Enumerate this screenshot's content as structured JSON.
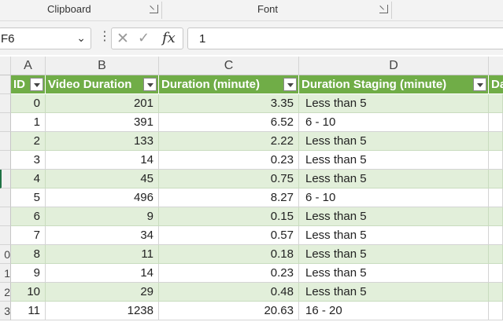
{
  "ribbon": {
    "groups": [
      "Clipboard",
      "Font"
    ]
  },
  "formula_bar": {
    "name_box": "F6",
    "cancel_icon": "close-icon",
    "enter_icon": "check-icon",
    "fx_label": "fx",
    "formula_value": "1"
  },
  "columns": [
    "A",
    "B",
    "C",
    "D"
  ],
  "table": {
    "headers": [
      "ID",
      "Video Duration",
      "Duration (minute)",
      "Duration Staging (minute)",
      "Da"
    ],
    "rows": [
      {
        "row_num": "",
        "id": "0",
        "video_duration": "201",
        "duration_minute": "3.35",
        "staging": "Less than 5"
      },
      {
        "row_num": "",
        "id": "1",
        "video_duration": "391",
        "duration_minute": "6.52",
        "staging": "6 - 10"
      },
      {
        "row_num": "",
        "id": "2",
        "video_duration": "133",
        "duration_minute": "2.22",
        "staging": "Less than 5"
      },
      {
        "row_num": "",
        "id": "3",
        "video_duration": "14",
        "duration_minute": "0.23",
        "staging": "Less than 5"
      },
      {
        "row_num": "",
        "id": "4",
        "video_duration": "45",
        "duration_minute": "0.75",
        "staging": "Less than 5"
      },
      {
        "row_num": "",
        "id": "5",
        "video_duration": "496",
        "duration_minute": "8.27",
        "staging": "6 - 10"
      },
      {
        "row_num": "",
        "id": "6",
        "video_duration": "9",
        "duration_minute": "0.15",
        "staging": "Less than 5"
      },
      {
        "row_num": "",
        "id": "7",
        "video_duration": "34",
        "duration_minute": "0.57",
        "staging": "Less than 5"
      },
      {
        "row_num": "0",
        "id": "8",
        "video_duration": "11",
        "duration_minute": "0.18",
        "staging": "Less than 5"
      },
      {
        "row_num": "1",
        "id": "9",
        "video_duration": "14",
        "duration_minute": "0.23",
        "staging": "Less than 5"
      },
      {
        "row_num": "2",
        "id": "10",
        "video_duration": "29",
        "duration_minute": "0.48",
        "staging": "Less than 5"
      },
      {
        "row_num": "3",
        "id": "11",
        "video_duration": "1238",
        "duration_minute": "20.63",
        "staging": "16 - 20"
      }
    ]
  },
  "colors": {
    "header_green": "#70ad47",
    "band_green": "#e2efda"
  }
}
